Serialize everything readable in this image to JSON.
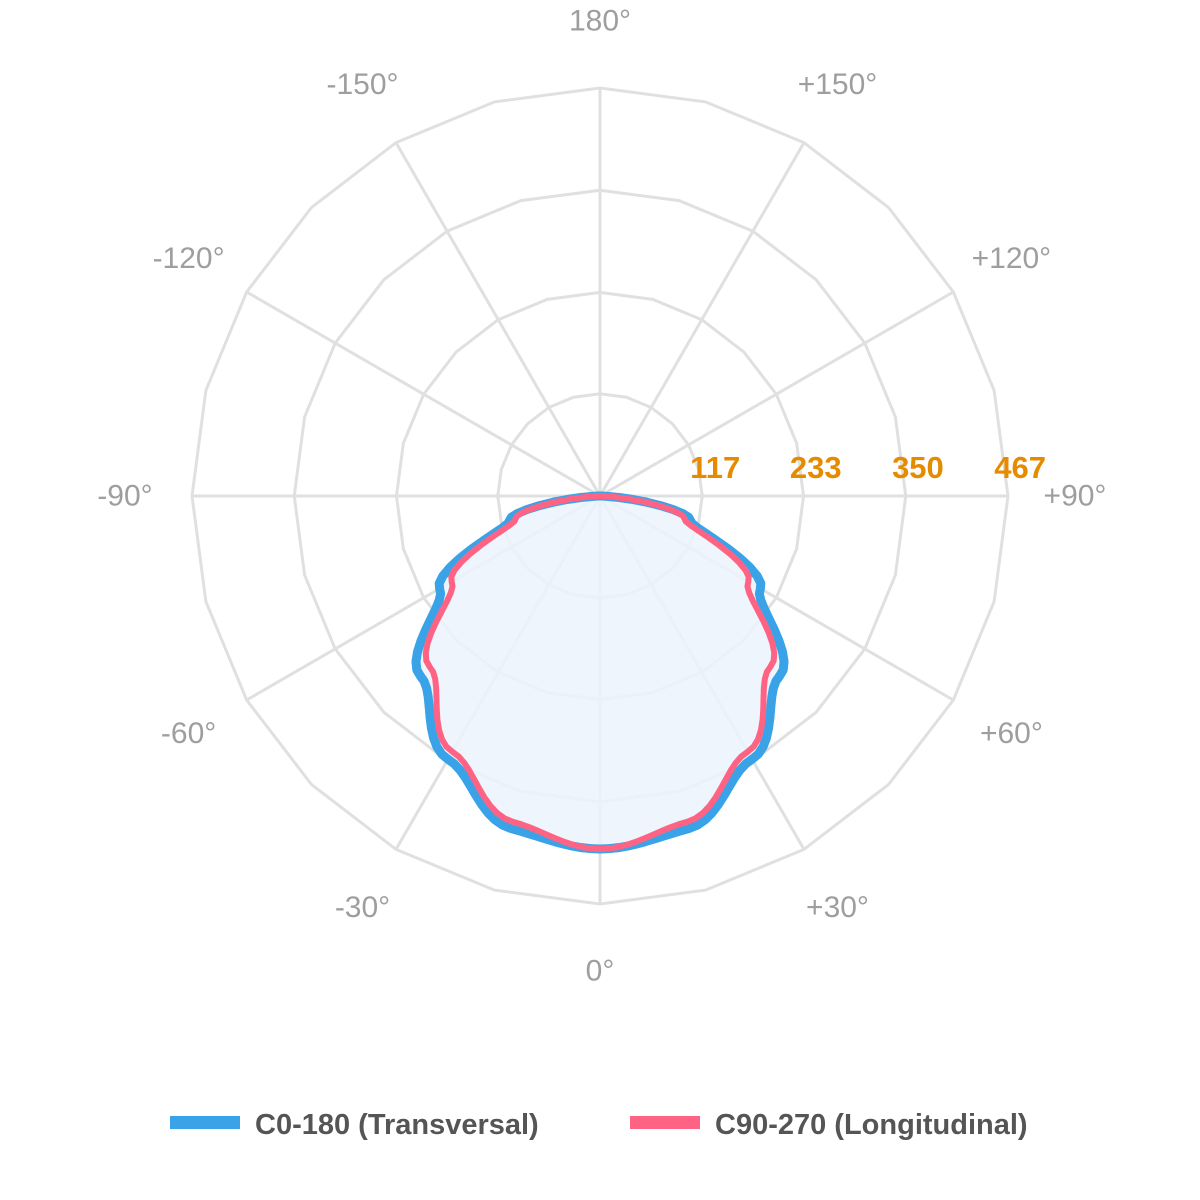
{
  "chart_data": {
    "type": "polar-line",
    "title": "",
    "angle_labels": [
      {
        "angle": 180,
        "text": "180°"
      },
      {
        "angle": 150,
        "text": "+150°"
      },
      {
        "angle": 120,
        "text": "+120°"
      },
      {
        "angle": 90,
        "text": "+90°"
      },
      {
        "angle": 60,
        "text": "+60°"
      },
      {
        "angle": 30,
        "text": "+30°"
      },
      {
        "angle": 0,
        "text": "0°"
      },
      {
        "angle": -30,
        "text": "-30°"
      },
      {
        "angle": -60,
        "text": "-60°"
      },
      {
        "angle": -90,
        "text": "-90°"
      },
      {
        "angle": -120,
        "text": "-120°"
      },
      {
        "angle": -150,
        "text": "-150°"
      }
    ],
    "radial_ticks": [
      117,
      233,
      350,
      467
    ],
    "r_max": 467,
    "angle_step": 15,
    "grid": true,
    "legend_position": "bottom",
    "series": [
      {
        "name": "C0-180 (Transversal)",
        "color": "#3aa3e8",
        "angles": [
          -90,
          -75,
          -60,
          -45,
          -30,
          -15,
          0,
          15,
          30,
          45,
          60,
          75,
          90
        ],
        "values": [
          0,
          107,
          212,
          291,
          348,
          394,
          404,
          394,
          348,
          291,
          212,
          107,
          0
        ]
      },
      {
        "name": "C90-270 (Longitudinal)",
        "color": "#ff6384",
        "angles": [
          -90,
          -75,
          -60,
          -45,
          -30,
          -15,
          0,
          15,
          30,
          45,
          60,
          75,
          90
        ],
        "values": [
          0,
          100,
          196,
          276,
          338,
          386,
          404,
          386,
          338,
          276,
          196,
          100,
          0
        ]
      }
    ]
  },
  "colors": {
    "grid": "#e0e0e0",
    "angle_label": "#9e9e9e",
    "radial_label": "#e68a00",
    "fill": "#ebf3fb"
  }
}
